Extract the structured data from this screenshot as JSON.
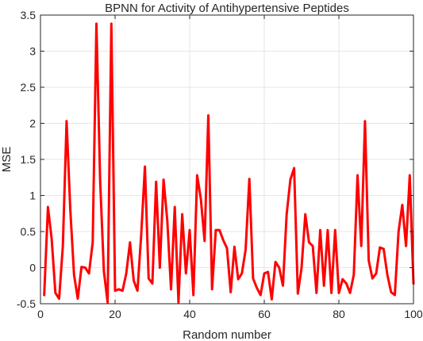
{
  "chart_data": {
    "type": "line",
    "title": "BPNN for Activity of Antihypertensive Peptides",
    "xlabel": "Random number",
    "ylabel": "MSE",
    "xlim": [
      0,
      100
    ],
    "ylim": [
      -0.5,
      3.5
    ],
    "xticks": [
      0,
      20,
      40,
      60,
      80,
      100
    ],
    "yticks": [
      -0.5,
      0,
      0.5,
      1,
      1.5,
      2,
      2.5,
      3,
      3.5
    ],
    "xtick_labels": [
      "0",
      "20",
      "40",
      "60",
      "80",
      "100"
    ],
    "ytick_labels": [
      "-0.5",
      "0",
      "0.5",
      "1",
      "1.5",
      "2",
      "2.5",
      "3",
      "3.5"
    ],
    "grid": true,
    "series": [
      {
        "color": "#ff0000",
        "x": [
          1,
          2,
          3,
          4,
          5,
          6,
          7,
          8,
          9,
          10,
          11,
          12,
          13,
          14,
          15,
          16,
          17,
          18,
          19,
          20,
          21,
          22,
          23,
          24,
          25,
          26,
          27,
          28,
          29,
          30,
          31,
          32,
          33,
          34,
          35,
          36,
          37,
          38,
          39,
          40,
          41,
          42,
          43,
          44,
          45,
          46,
          47,
          48,
          49,
          50,
          51,
          52,
          53,
          54,
          55,
          56,
          57,
          58,
          59,
          60,
          61,
          62,
          63,
          64,
          65,
          66,
          67,
          68,
          69,
          70,
          71,
          72,
          73,
          74,
          75,
          76,
          77,
          78,
          79,
          80,
          81,
          82,
          83,
          84,
          85,
          86,
          87,
          88,
          89,
          90,
          91,
          92,
          93,
          94,
          95,
          96,
          97,
          98,
          99,
          100
        ],
        "values": [
          -0.38,
          0.84,
          0.4,
          -0.35,
          -0.43,
          0.3,
          2.03,
          0.8,
          -0.1,
          -0.43,
          0.01,
          0.0,
          -0.08,
          0.35,
          3.38,
          1.2,
          -0.05,
          -0.48,
          3.38,
          -0.32,
          -0.3,
          -0.32,
          -0.08,
          0.35,
          -0.18,
          -0.32,
          0.45,
          1.4,
          -0.15,
          -0.22,
          1.19,
          0.0,
          1.22,
          0.65,
          -0.3,
          0.84,
          -0.48,
          0.74,
          -0.08,
          0.52,
          -0.38,
          1.28,
          0.95,
          0.37,
          2.11,
          -0.3,
          0.52,
          0.52,
          0.38,
          0.27,
          -0.34,
          0.29,
          -0.16,
          -0.08,
          0.25,
          1.23,
          -0.15,
          -0.28,
          -0.38,
          -0.08,
          -0.06,
          -0.44,
          0.08,
          0.0,
          -0.25,
          0.74,
          1.22,
          1.38,
          -0.36,
          0.0,
          0.74,
          0.35,
          0.3,
          -0.35,
          0.52,
          -0.25,
          0.52,
          -0.35,
          0.52,
          -0.35,
          -0.16,
          -0.22,
          -0.35,
          -0.1,
          1.28,
          0.3,
          2.03,
          0.1,
          -0.15,
          -0.08,
          0.28,
          0.26,
          -0.1,
          -0.34,
          -0.38,
          0.5,
          0.87,
          0.3,
          1.28,
          -0.22
        ]
      }
    ]
  }
}
